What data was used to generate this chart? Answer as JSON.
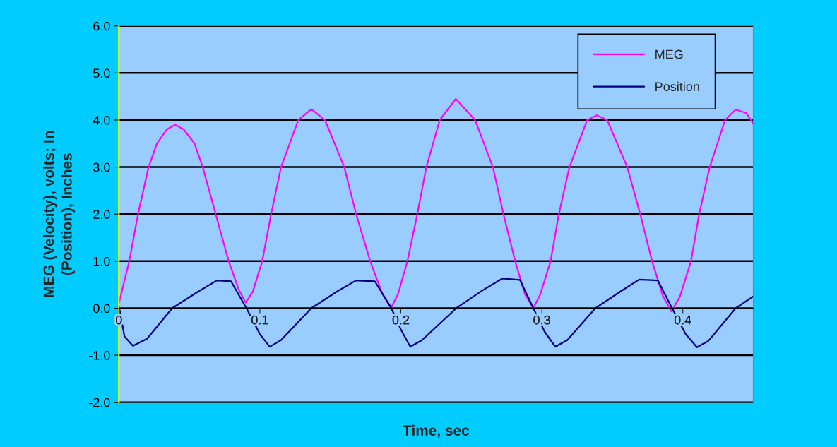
{
  "chart_data": {
    "type": "line",
    "xlabel": "Time, sec",
    "ylabel": "MEG (Velocity), volts; In\n(Position), Inches",
    "xlim": [
      0,
      0.45
    ],
    "ylim": [
      -2,
      6
    ],
    "xticks": [
      {
        "value": 0,
        "label": "0"
      },
      0.1,
      0.2,
      0.3,
      0.4
    ],
    "yticks": [
      {
        "value": -2,
        "label": "-2.0"
      },
      {
        "value": -1,
        "label": "-1.0"
      },
      {
        "value": 0,
        "label": "0.0"
      },
      {
        "value": 1,
        "label": "1.0"
      },
      {
        "value": 2,
        "label": "2.0"
      },
      {
        "value": 3,
        "label": "3.0"
      },
      {
        "value": 4,
        "label": "4.0"
      },
      {
        "value": 5,
        "label": "5.0"
      },
      {
        "value": 6,
        "label": "6.0"
      }
    ],
    "grid": "y",
    "legend": "top right",
    "line_style": "solid",
    "marker": "none",
    "series": [
      {
        "name": "MEG",
        "color": "#ff00ff",
        "x": [
          0,
          0.0074,
          0.0136,
          0.0211,
          0.027,
          0.034,
          0.04,
          0.046,
          0.0537,
          0.0595,
          0.0687,
          0.0779,
          0.085,
          0.09,
          0.095,
          0.1017,
          0.108,
          0.1151,
          0.1273,
          0.1365,
          0.1462,
          0.1599,
          0.1683,
          0.1783,
          0.187,
          0.193,
          0.198,
          0.2047,
          0.2117,
          0.2181,
          0.2276,
          0.239,
          0.2527,
          0.2653,
          0.2728,
          0.2811,
          0.288,
          0.294,
          0.299,
          0.3062,
          0.3121,
          0.3196,
          0.3322,
          0.339,
          0.3464,
          0.3606,
          0.3698,
          0.3782,
          0.386,
          0.392,
          0.398,
          0.4058,
          0.4116,
          0.4191,
          0.43,
          0.4375,
          0.445,
          0.45
        ],
        "values": [
          0.1,
          1,
          2,
          3,
          3.5,
          3.8,
          3.9,
          3.8,
          3.5,
          3,
          2,
          1,
          0.4,
          0.12,
          0.35,
          1,
          2,
          3,
          4,
          4.23,
          4,
          3,
          2,
          1,
          0.3,
          0,
          0.3,
          1,
          2,
          3,
          4,
          4.45,
          4,
          3,
          2,
          1,
          0.3,
          0,
          0.3,
          1,
          2,
          3,
          4,
          4.1,
          4,
          3,
          2,
          1,
          0.25,
          -0.07,
          0.25,
          1,
          2,
          3,
          4,
          4.22,
          4.15,
          3.92
        ]
      },
      {
        "name": "Position",
        "color": "#000080",
        "x": [
          0,
          0.004,
          0.01,
          0.02,
          0.0378,
          0.055,
          0.0696,
          0.0796,
          0.0905,
          0.1,
          0.107,
          0.115,
          0.1365,
          0.155,
          0.1683,
          0.1816,
          0.1933,
          0.2,
          0.2067,
          0.215,
          0.2393,
          0.258,
          0.272,
          0.2845,
          0.294,
          0.302,
          0.3096,
          0.318,
          0.338,
          0.356,
          0.369,
          0.3823,
          0.3924,
          0.402,
          0.41,
          0.418,
          0.4375,
          0.45
        ],
        "values": [
          0.05,
          -0.6,
          -0.8,
          -0.65,
          0,
          0.33,
          0.59,
          0.57,
          0,
          -0.55,
          -0.82,
          -0.68,
          0,
          0.36,
          0.59,
          0.57,
          0,
          -0.45,
          -0.82,
          -0.68,
          0,
          0.38,
          0.63,
          0.6,
          0,
          -0.5,
          -0.82,
          -0.68,
          0,
          0.36,
          0.61,
          0.59,
          0,
          -0.55,
          -0.83,
          -0.7,
          0,
          0.25
        ]
      }
    ]
  }
}
